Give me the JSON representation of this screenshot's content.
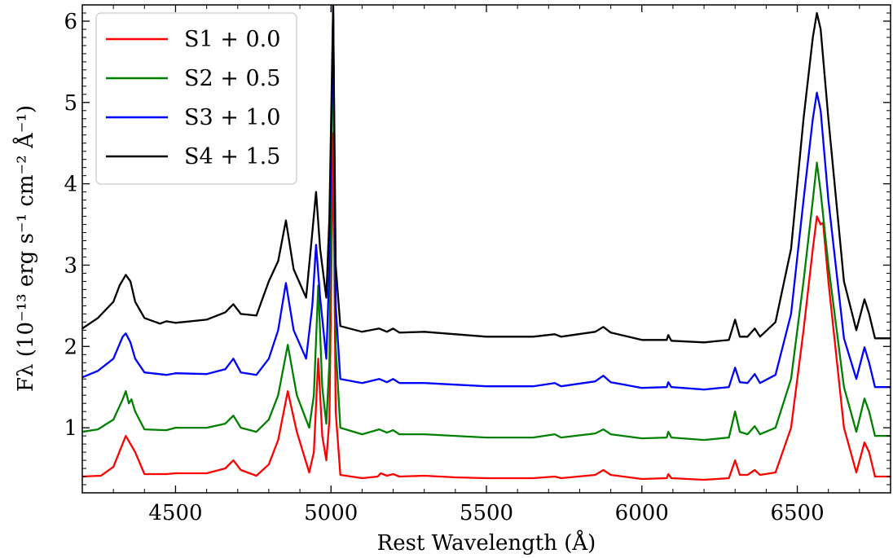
{
  "chart_data": {
    "type": "line",
    "title": "",
    "xlabel": "Rest Wavelength (Å)",
    "ylabel": "Fλ (10⁻¹³ erg s⁻¹ cm⁻² Å⁻¹)",
    "xlim": [
      4200,
      6800
    ],
    "ylim": [
      0.2,
      6.2
    ],
    "x_ticks": [
      4500,
      5000,
      5500,
      6000,
      6500
    ],
    "x_tick_labels": [
      "4500",
      "5000",
      "5500",
      "6000",
      "6500"
    ],
    "y_ticks": [
      1,
      2,
      3,
      4,
      5,
      6
    ],
    "y_tick_labels": [
      "1",
      "2",
      "3",
      "4",
      "5",
      "6"
    ],
    "grid": false,
    "legend_position": "top-left",
    "series": [
      {
        "name": "S1 + 0.0",
        "color": "#ff0000",
        "points": [
          [
            4200,
            0.4
          ],
          [
            4260,
            0.41
          ],
          [
            4300,
            0.52
          ],
          [
            4340,
            0.9
          ],
          [
            4370,
            0.7
          ],
          [
            4400,
            0.43
          ],
          [
            4470,
            0.43
          ],
          [
            4500,
            0.44
          ],
          [
            4600,
            0.44
          ],
          [
            4660,
            0.5
          ],
          [
            4686,
            0.6
          ],
          [
            4710,
            0.48
          ],
          [
            4760,
            0.41
          ],
          [
            4800,
            0.55
          ],
          [
            4830,
            0.85
          ],
          [
            4861,
            1.45
          ],
          [
            4890,
            0.95
          ],
          [
            4930,
            0.45
          ],
          [
            4945,
            0.7
          ],
          [
            4959,
            1.85
          ],
          [
            4972,
            0.9
          ],
          [
            4985,
            0.6
          ],
          [
            4995,
            1.1
          ],
          [
            5007,
            4.62
          ],
          [
            5015,
            1.2
          ],
          [
            5030,
            0.42
          ],
          [
            5100,
            0.38
          ],
          [
            5150,
            0.4
          ],
          [
            5160,
            0.44
          ],
          [
            5180,
            0.41
          ],
          [
            5200,
            0.43
          ],
          [
            5220,
            0.4
          ],
          [
            5300,
            0.41
          ],
          [
            5400,
            0.39
          ],
          [
            5500,
            0.38
          ],
          [
            5650,
            0.38
          ],
          [
            5720,
            0.4
          ],
          [
            5740,
            0.38
          ],
          [
            5850,
            0.42
          ],
          [
            5876,
            0.48
          ],
          [
            5900,
            0.42
          ],
          [
            6000,
            0.37
          ],
          [
            6080,
            0.38
          ],
          [
            6085,
            0.43
          ],
          [
            6095,
            0.38
          ],
          [
            6200,
            0.36
          ],
          [
            6280,
            0.38
          ],
          [
            6300,
            0.6
          ],
          [
            6315,
            0.42
          ],
          [
            6340,
            0.42
          ],
          [
            6363,
            0.48
          ],
          [
            6380,
            0.42
          ],
          [
            6430,
            0.45
          ],
          [
            6480,
            1.0
          ],
          [
            6520,
            2.2
          ],
          [
            6550,
            3.2
          ],
          [
            6563,
            3.6
          ],
          [
            6575,
            3.5
          ],
          [
            6583,
            3.52
          ],
          [
            6600,
            2.8
          ],
          [
            6650,
            1.0
          ],
          [
            6690,
            0.45
          ],
          [
            6716,
            0.82
          ],
          [
            6731,
            0.7
          ],
          [
            6750,
            0.4
          ],
          [
            6800,
            0.4
          ]
        ]
      },
      {
        "name": "S2 + 0.5",
        "color": "#008000",
        "points": [
          [
            4200,
            0.95
          ],
          [
            4250,
            0.98
          ],
          [
            4300,
            1.1
          ],
          [
            4330,
            1.35
          ],
          [
            4340,
            1.45
          ],
          [
            4350,
            1.3
          ],
          [
            4358,
            1.35
          ],
          [
            4370,
            1.2
          ],
          [
            4400,
            0.98
          ],
          [
            4470,
            0.97
          ],
          [
            4500,
            1.0
          ],
          [
            4600,
            1.0
          ],
          [
            4660,
            1.05
          ],
          [
            4686,
            1.15
          ],
          [
            4710,
            1.0
          ],
          [
            4760,
            0.95
          ],
          [
            4800,
            1.1
          ],
          [
            4830,
            1.4
          ],
          [
            4861,
            2.02
          ],
          [
            4890,
            1.4
          ],
          [
            4930,
            1.0
          ],
          [
            4945,
            1.4
          ],
          [
            4959,
            2.75
          ],
          [
            4972,
            1.5
          ],
          [
            4985,
            1.05
          ],
          [
            4995,
            1.8
          ],
          [
            5007,
            6.2
          ],
          [
            5015,
            2.0
          ],
          [
            5030,
            1.0
          ],
          [
            5100,
            0.92
          ],
          [
            5155,
            0.98
          ],
          [
            5180,
            0.94
          ],
          [
            5200,
            0.97
          ],
          [
            5220,
            0.92
          ],
          [
            5300,
            0.92
          ],
          [
            5400,
            0.9
          ],
          [
            5500,
            0.88
          ],
          [
            5650,
            0.88
          ],
          [
            5720,
            0.92
          ],
          [
            5740,
            0.88
          ],
          [
            5850,
            0.93
          ],
          [
            5876,
            0.98
          ],
          [
            5900,
            0.92
          ],
          [
            6000,
            0.87
          ],
          [
            6080,
            0.88
          ],
          [
            6085,
            0.95
          ],
          [
            6095,
            0.88
          ],
          [
            6200,
            0.85
          ],
          [
            6280,
            0.88
          ],
          [
            6300,
            1.2
          ],
          [
            6315,
            0.95
          ],
          [
            6340,
            0.92
          ],
          [
            6363,
            1.02
          ],
          [
            6380,
            0.92
          ],
          [
            6430,
            1.0
          ],
          [
            6480,
            1.6
          ],
          [
            6520,
            2.8
          ],
          [
            6550,
            3.8
          ],
          [
            6563,
            4.26
          ],
          [
            6575,
            3.9
          ],
          [
            6600,
            3.0
          ],
          [
            6650,
            1.5
          ],
          [
            6690,
            0.95
          ],
          [
            6716,
            1.36
          ],
          [
            6731,
            1.2
          ],
          [
            6750,
            0.9
          ],
          [
            6800,
            0.9
          ]
        ]
      },
      {
        "name": "S3 + 1.0",
        "color": "#0000ff",
        "points": [
          [
            4200,
            1.62
          ],
          [
            4250,
            1.7
          ],
          [
            4300,
            1.85
          ],
          [
            4330,
            2.12
          ],
          [
            4340,
            2.16
          ],
          [
            4355,
            2.05
          ],
          [
            4370,
            1.85
          ],
          [
            4400,
            1.68
          ],
          [
            4470,
            1.65
          ],
          [
            4500,
            1.67
          ],
          [
            4600,
            1.66
          ],
          [
            4660,
            1.72
          ],
          [
            4686,
            1.85
          ],
          [
            4710,
            1.68
          ],
          [
            4760,
            1.65
          ],
          [
            4800,
            1.85
          ],
          [
            4830,
            2.2
          ],
          [
            4855,
            2.78
          ],
          [
            4880,
            2.2
          ],
          [
            4920,
            1.85
          ],
          [
            4940,
            2.5
          ],
          [
            4952,
            3.25
          ],
          [
            4965,
            2.6
          ],
          [
            4985,
            1.85
          ],
          [
            4995,
            3.0
          ],
          [
            5007,
            6.2
          ],
          [
            5015,
            2.5
          ],
          [
            5030,
            1.6
          ],
          [
            5100,
            1.55
          ],
          [
            5155,
            1.6
          ],
          [
            5180,
            1.56
          ],
          [
            5200,
            1.6
          ],
          [
            5220,
            1.55
          ],
          [
            5300,
            1.55
          ],
          [
            5400,
            1.53
          ],
          [
            5500,
            1.51
          ],
          [
            5650,
            1.51
          ],
          [
            5720,
            1.55
          ],
          [
            5740,
            1.51
          ],
          [
            5850,
            1.57
          ],
          [
            5876,
            1.64
          ],
          [
            5900,
            1.56
          ],
          [
            6000,
            1.49
          ],
          [
            6080,
            1.5
          ],
          [
            6085,
            1.56
          ],
          [
            6095,
            1.5
          ],
          [
            6200,
            1.47
          ],
          [
            6280,
            1.5
          ],
          [
            6300,
            1.74
          ],
          [
            6315,
            1.56
          ],
          [
            6340,
            1.55
          ],
          [
            6363,
            1.66
          ],
          [
            6380,
            1.55
          ],
          [
            6430,
            1.65
          ],
          [
            6480,
            2.4
          ],
          [
            6520,
            3.8
          ],
          [
            6550,
            4.8
          ],
          [
            6563,
            5.12
          ],
          [
            6575,
            4.9
          ],
          [
            6600,
            3.8
          ],
          [
            6650,
            2.1
          ],
          [
            6690,
            1.6
          ],
          [
            6716,
            1.99
          ],
          [
            6731,
            1.8
          ],
          [
            6750,
            1.5
          ],
          [
            6800,
            1.5
          ]
        ]
      },
      {
        "name": "S4 + 1.5",
        "color": "#000000",
        "points": [
          [
            4200,
            2.22
          ],
          [
            4250,
            2.35
          ],
          [
            4300,
            2.55
          ],
          [
            4320,
            2.75
          ],
          [
            4340,
            2.88
          ],
          [
            4355,
            2.8
          ],
          [
            4370,
            2.55
          ],
          [
            4400,
            2.35
          ],
          [
            4450,
            2.28
          ],
          [
            4470,
            2.31
          ],
          [
            4500,
            2.29
          ],
          [
            4600,
            2.33
          ],
          [
            4660,
            2.42
          ],
          [
            4686,
            2.52
          ],
          [
            4710,
            2.4
          ],
          [
            4760,
            2.38
          ],
          [
            4800,
            2.8
          ],
          [
            4830,
            3.05
          ],
          [
            4855,
            3.55
          ],
          [
            4880,
            2.95
          ],
          [
            4920,
            2.6
          ],
          [
            4940,
            3.4
          ],
          [
            4952,
            3.9
          ],
          [
            4965,
            3.2
          ],
          [
            4985,
            2.6
          ],
          [
            4995,
            3.6
          ],
          [
            5007,
            6.2
          ],
          [
            5015,
            3.0
          ],
          [
            5030,
            2.25
          ],
          [
            5100,
            2.18
          ],
          [
            5155,
            2.22
          ],
          [
            5180,
            2.18
          ],
          [
            5200,
            2.22
          ],
          [
            5220,
            2.17
          ],
          [
            5300,
            2.18
          ],
          [
            5400,
            2.15
          ],
          [
            5500,
            2.12
          ],
          [
            5650,
            2.12
          ],
          [
            5720,
            2.15
          ],
          [
            5740,
            2.12
          ],
          [
            5850,
            2.18
          ],
          [
            5876,
            2.24
          ],
          [
            5900,
            2.17
          ],
          [
            6000,
            2.08
          ],
          [
            6080,
            2.08
          ],
          [
            6085,
            2.14
          ],
          [
            6095,
            2.07
          ],
          [
            6200,
            2.05
          ],
          [
            6280,
            2.08
          ],
          [
            6300,
            2.33
          ],
          [
            6315,
            2.12
          ],
          [
            6340,
            2.12
          ],
          [
            6363,
            2.22
          ],
          [
            6380,
            2.12
          ],
          [
            6430,
            2.3
          ],
          [
            6480,
            3.2
          ],
          [
            6520,
            4.8
          ],
          [
            6550,
            5.8
          ],
          [
            6563,
            6.1
          ],
          [
            6575,
            5.9
          ],
          [
            6600,
            4.8
          ],
          [
            6650,
            2.8
          ],
          [
            6690,
            2.2
          ],
          [
            6716,
            2.58
          ],
          [
            6731,
            2.4
          ],
          [
            6750,
            2.1
          ],
          [
            6800,
            2.1
          ]
        ]
      }
    ]
  }
}
